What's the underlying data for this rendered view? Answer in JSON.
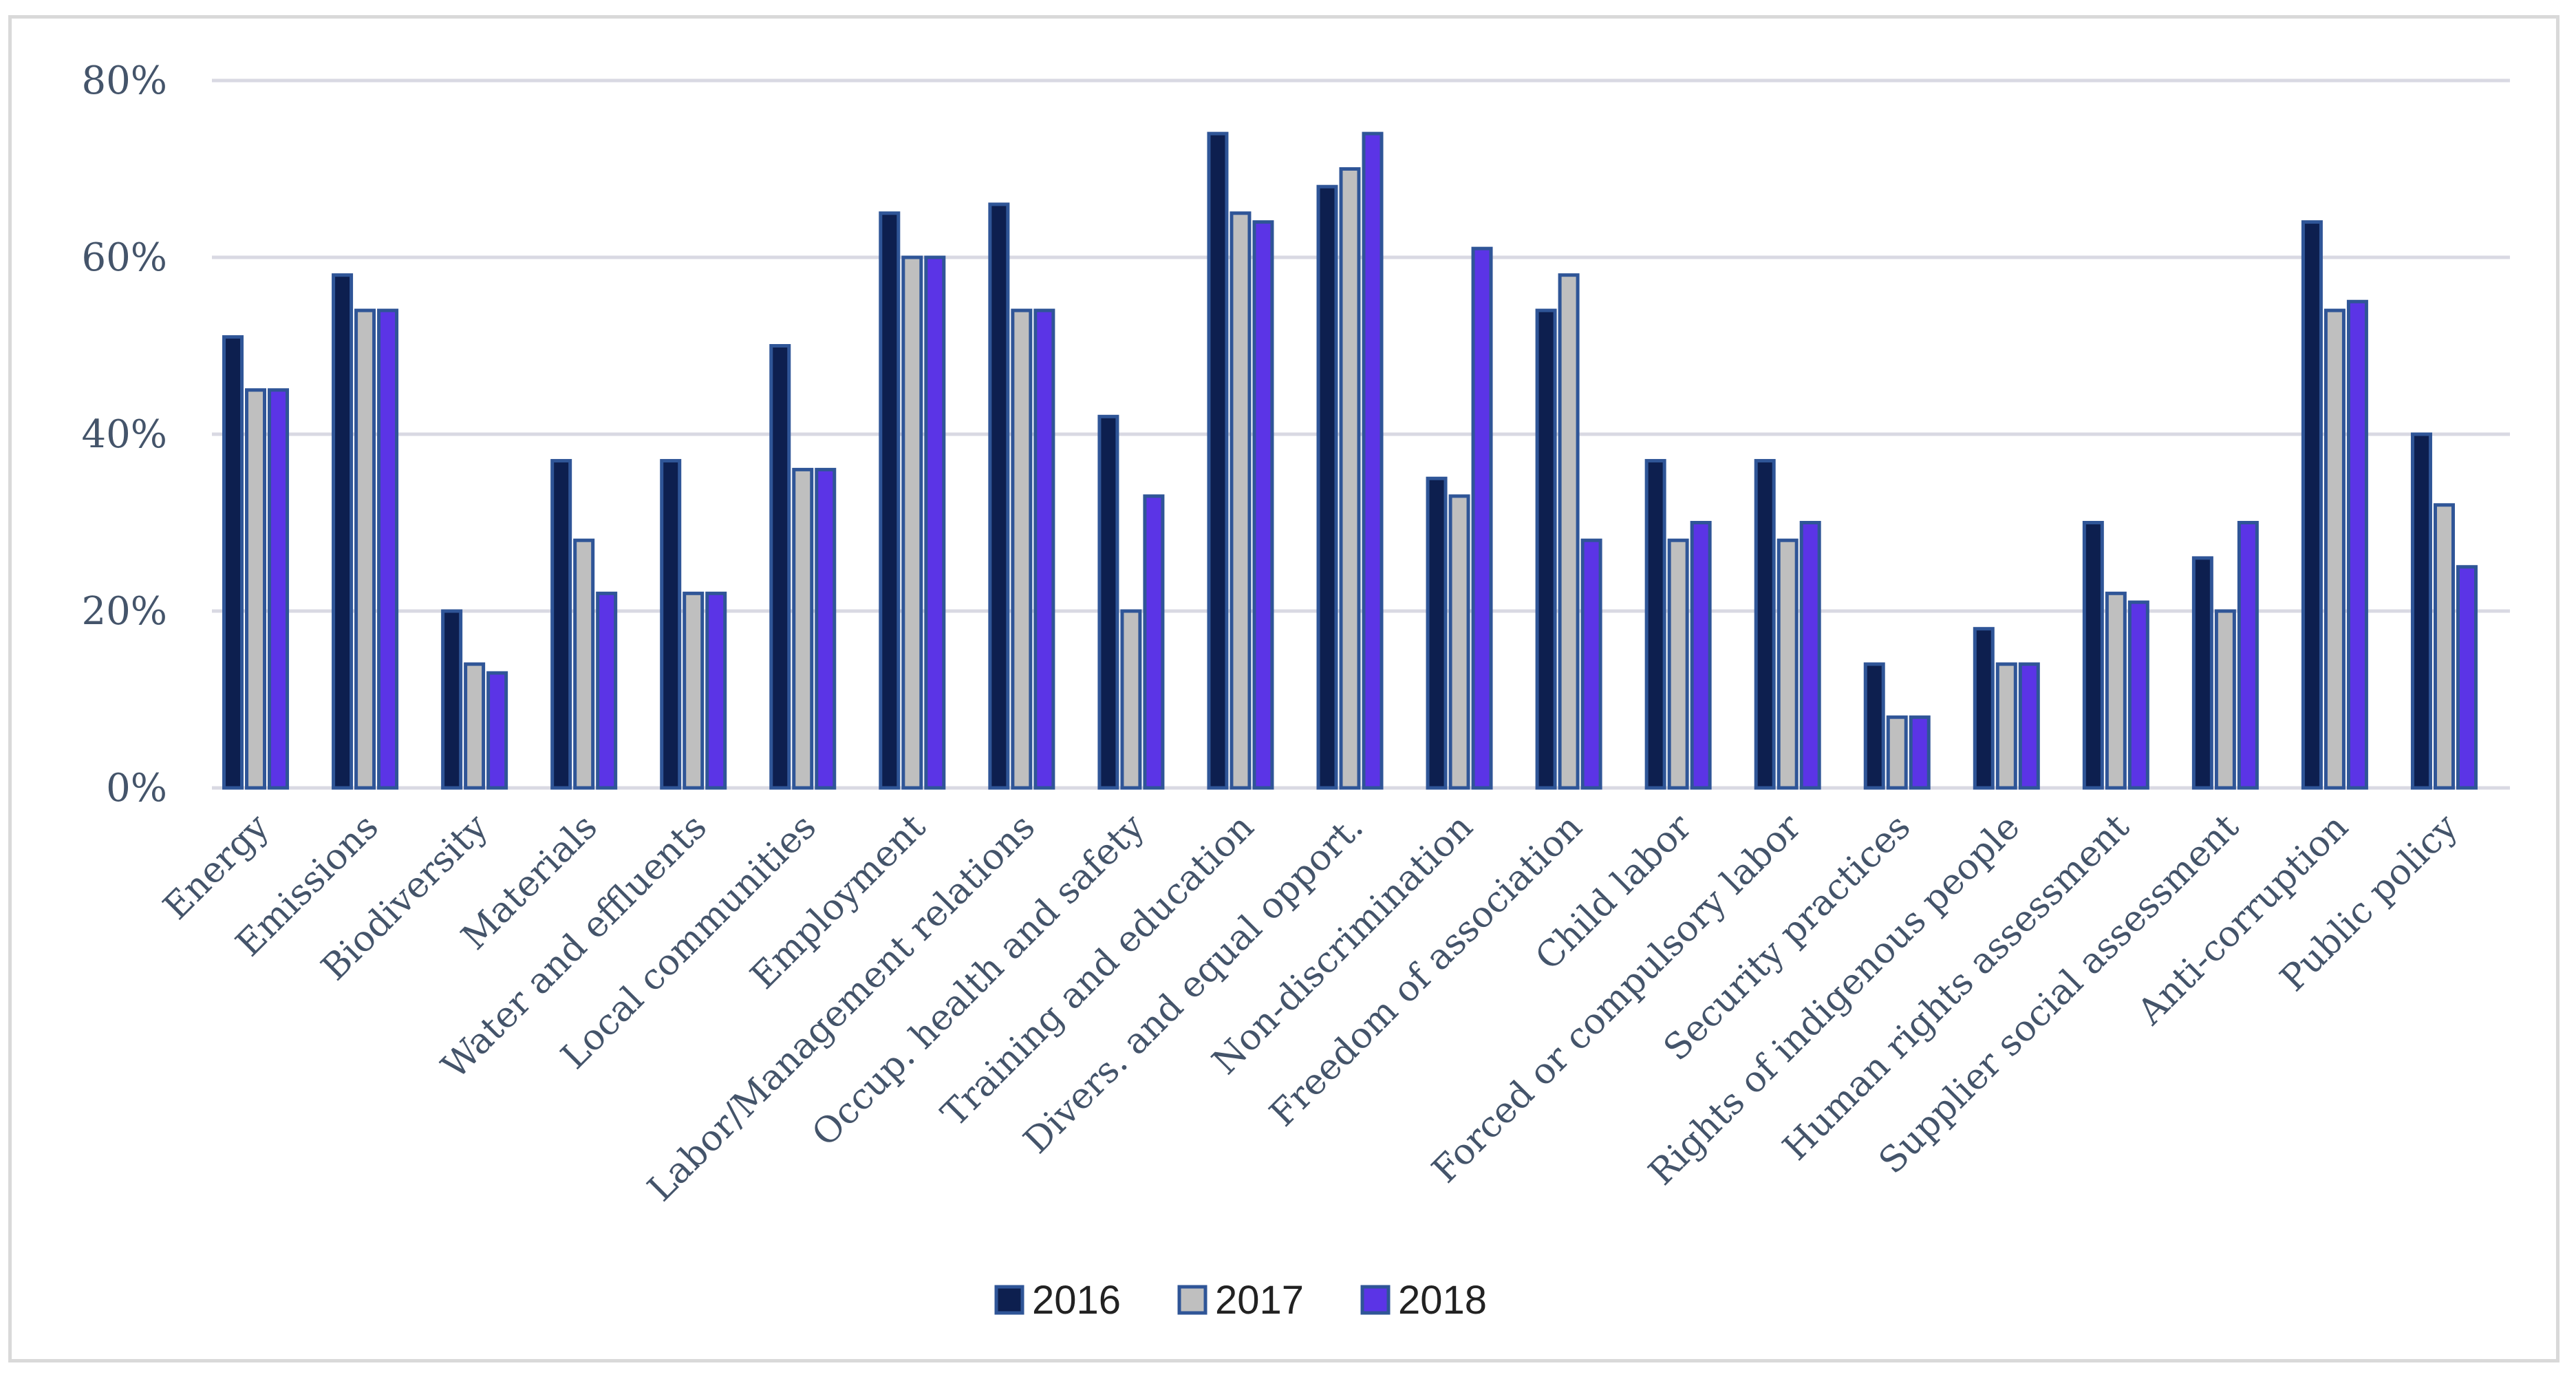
{
  "chart_data": {
    "type": "bar",
    "title": "",
    "xlabel": "",
    "ylabel": "",
    "ylim": [
      0,
      80
    ],
    "yticks": [
      "0%",
      "20%",
      "40%",
      "60%",
      "80%"
    ],
    "grid": true,
    "legend_position": "bottom",
    "categories": [
      "Energy",
      "Emissions",
      "Biodiversity",
      "Materials",
      "Water and effluents",
      "Local communities",
      "Employment",
      "Labor/Management relations",
      "Occup. health and safety",
      "Training and education",
      "Divers. and equal opport.",
      "Non-discrimination",
      "Freedom of association",
      "Child labor",
      "Forced or compulsory labor",
      "Security practices",
      "Rights of indigenous people",
      "Human rights assessment",
      "Supplier social assessment",
      "Anti-corruption",
      "Public policy"
    ],
    "series": [
      {
        "name": "2016",
        "color": "#0d1f4f",
        "values": [
          51,
          58,
          20,
          37,
          37,
          50,
          65,
          66,
          42,
          74,
          68,
          35,
          54,
          37,
          37,
          14,
          18,
          30,
          26,
          64,
          40
        ]
      },
      {
        "name": "2017",
        "color": "#bfbfbf",
        "values": [
          45,
          54,
          14,
          28,
          22,
          36,
          60,
          54,
          20,
          65,
          70,
          33,
          58,
          28,
          28,
          8,
          14,
          22,
          20,
          54,
          32
        ]
      },
      {
        "name": "2018",
        "color": "#5b34e6",
        "values": [
          45,
          54,
          13,
          22,
          22,
          36,
          60,
          54,
          33,
          64,
          74,
          61,
          28,
          30,
          30,
          8,
          14,
          21,
          30,
          55,
          25
        ]
      }
    ]
  }
}
